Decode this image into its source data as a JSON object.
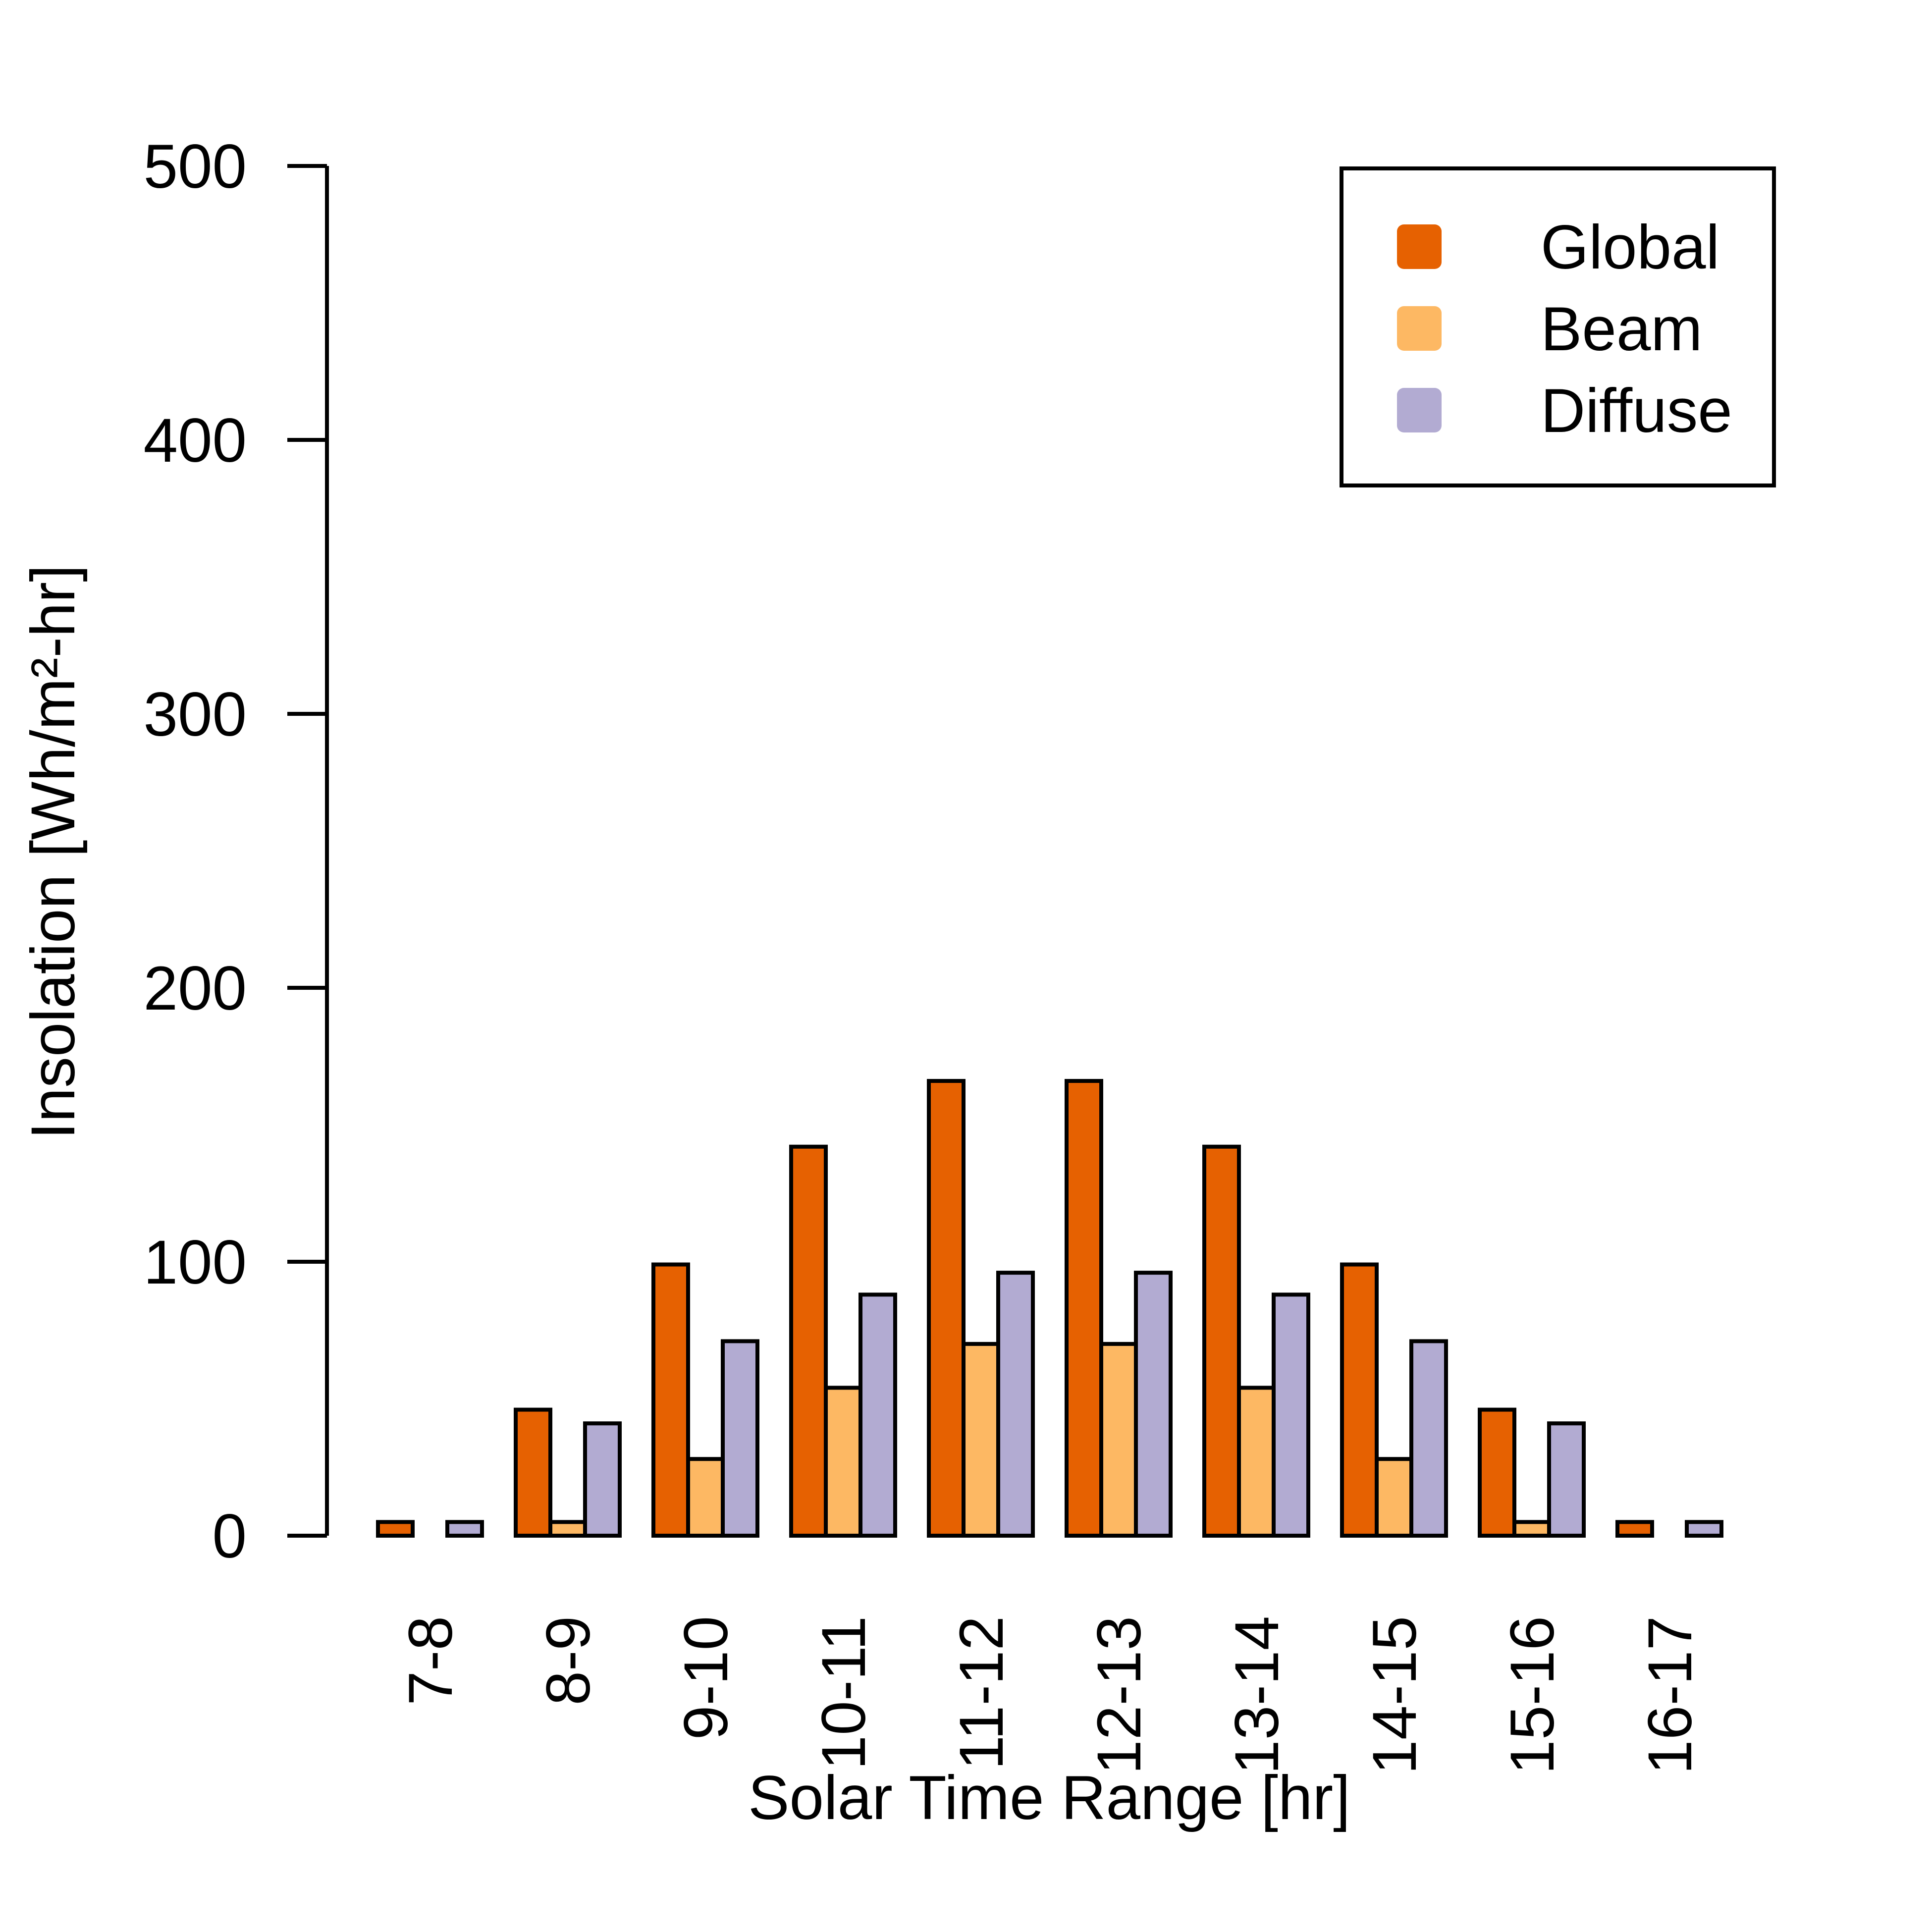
{
  "chart_data": {
    "type": "bar",
    "xlabel": "Solar Time Range [hr]",
    "ylabel": "Insolation [Wh/m²-hr]",
    "ylim": [
      0,
      500
    ],
    "yticks": [
      0,
      100,
      200,
      300,
      400,
      500
    ],
    "categories": [
      "7-8",
      "8-9",
      "9-10",
      "10-11",
      "11-12",
      "12-13",
      "13-14",
      "14-15",
      "15-16",
      "16-17"
    ],
    "series": [
      {
        "name": "Global",
        "color": "#E66101",
        "values": [
          5,
          46,
          99,
          142,
          166,
          166,
          142,
          99,
          46,
          5
        ]
      },
      {
        "name": "Beam",
        "color": "#FDB863",
        "values": [
          0,
          5,
          28,
          54,
          70,
          70,
          54,
          28,
          5,
          0
        ]
      },
      {
        "name": "Diffuse",
        "color": "#B2ABD2",
        "values": [
          5,
          41,
          71,
          88,
          96,
          96,
          88,
          71,
          41,
          5
        ]
      }
    ],
    "legend_position": "top-right",
    "grid": false
  }
}
